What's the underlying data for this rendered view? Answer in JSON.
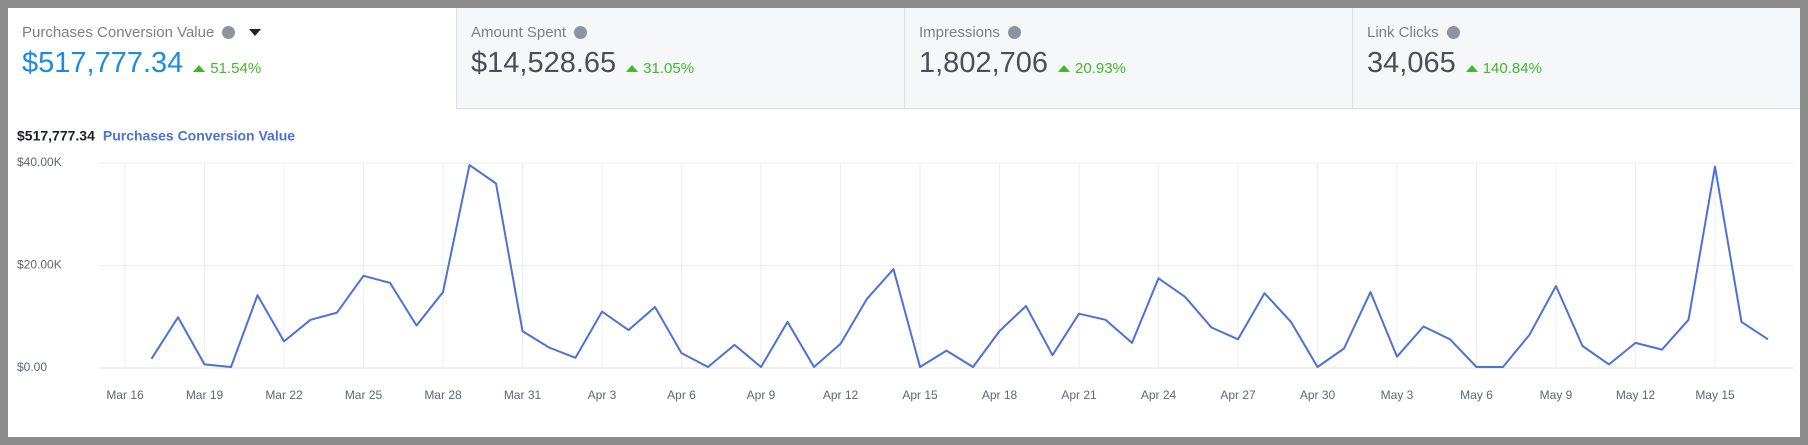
{
  "tabs": [
    {
      "label": "Purchases Conversion Value",
      "value": "$517,777.34",
      "change": "51.54%"
    },
    {
      "label": "Amount Spent",
      "value": "$14,528.65",
      "change": "31.05%"
    },
    {
      "label": "Impressions",
      "value": "1,802,706",
      "change": "20.93%"
    },
    {
      "label": "Link Clicks",
      "value": "34,065",
      "change": "140.84%"
    }
  ],
  "chart_data": {
    "type": "line",
    "total": "$517,777.34",
    "categories": [
      "Mar 16",
      null,
      null,
      "Mar 19",
      null,
      null,
      "Mar 22",
      null,
      null,
      "Mar 25",
      null,
      null,
      "Mar 28",
      null,
      null,
      "Mar 31",
      null,
      null,
      "Apr 3",
      null,
      null,
      "Apr 6",
      null,
      null,
      "Apr 9",
      null,
      null,
      "Apr 12",
      null,
      null,
      "Apr 15",
      null,
      null,
      "Apr 18",
      null,
      null,
      "Apr 21",
      null,
      null,
      "Apr 24",
      null,
      null,
      "Apr 27",
      null,
      null,
      "Apr 30",
      null,
      null,
      "May 3",
      null,
      null,
      "May 6",
      null,
      null,
      "May 9",
      null,
      null,
      "May 12",
      null,
      null,
      "May 15",
      null,
      null
    ],
    "series": [
      {
        "name": "Purchases Conversion Value",
        "color": "#4a72d8",
        "values": [
          null,
          1800,
          9900,
          700,
          200,
          14200,
          5200,
          9400,
          10800,
          18000,
          16600,
          8300,
          14800,
          39600,
          36000,
          7200,
          4000,
          2000,
          11000,
          7400,
          11900,
          2900,
          200,
          4500,
          200,
          9000,
          200,
          4700,
          13500,
          19300,
          200,
          3400,
          200,
          7200,
          12100,
          2500,
          10600,
          9400,
          4900,
          17500,
          13900,
          7900,
          5600,
          14600,
          9000,
          200,
          3800,
          14800,
          2200,
          8100,
          5600,
          200,
          200,
          6500,
          16000,
          4300,
          700,
          4900,
          3600,
          9400,
          39300,
          9000,
          5600
        ]
      }
    ],
    "ylim": [
      0,
      40000
    ],
    "yticks": [
      {
        "value": 0,
        "label": "$0.00"
      },
      {
        "value": 20000,
        "label": "$20.00K"
      },
      {
        "value": 40000,
        "label": "$40.00K"
      }
    ],
    "grid": true
  }
}
